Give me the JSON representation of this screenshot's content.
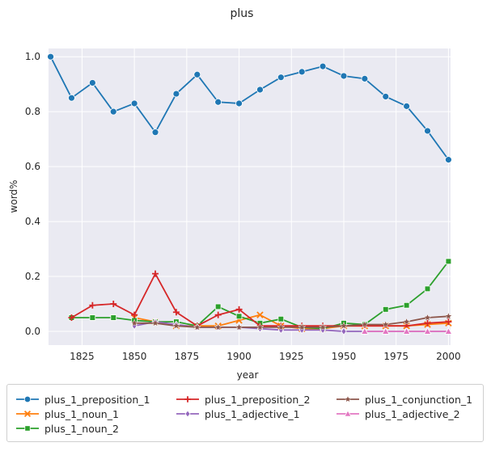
{
  "chart_data": {
    "type": "line",
    "title": "plus",
    "xlabel": "year",
    "ylabel": "word%",
    "xlim": [
      1809,
      2001
    ],
    "ylim": [
      -0.05,
      1.03
    ],
    "xticks": [
      1825,
      1850,
      1875,
      1900,
      1925,
      1950,
      1975,
      2000
    ],
    "yticks": [
      0.0,
      0.2,
      0.4,
      0.6,
      0.8,
      1.0
    ],
    "grid": true,
    "legend_position": "bottom",
    "series": [
      {
        "name": "plus_1_preposition_1",
        "color": "#1f77b4",
        "marker": "circle",
        "x": [
          1810,
          1820,
          1830,
          1840,
          1850,
          1860,
          1870,
          1880,
          1890,
          1900,
          1910,
          1920,
          1930,
          1940,
          1950,
          1960,
          1970,
          1980,
          1990,
          2000
        ],
        "values": [
          1.0,
          0.85,
          0.905,
          0.8,
          0.83,
          0.725,
          0.865,
          0.935,
          0.835,
          0.83,
          0.88,
          0.925,
          0.945,
          0.965,
          0.93,
          0.92,
          0.855,
          0.82,
          0.73,
          0.625
        ]
      },
      {
        "name": "plus_1_noun_1",
        "color": "#ff7f0e",
        "marker": "x",
        "x": [
          1850,
          1860,
          1870,
          1880,
          1890,
          1900,
          1910,
          1920,
          1930,
          1940,
          1950,
          1960,
          1970,
          1980,
          1990,
          2000
        ],
        "values": [
          0.05,
          0.035,
          0.02,
          0.02,
          0.02,
          0.04,
          0.06,
          0.02,
          0.01,
          0.01,
          0.02,
          0.02,
          0.02,
          0.02,
          0.025,
          0.03
        ]
      },
      {
        "name": "plus_1_noun_2",
        "color": "#2ca02c",
        "marker": "square",
        "x": [
          1820,
          1830,
          1840,
          1850,
          1860,
          1870,
          1880,
          1890,
          1900,
          1910,
          1920,
          1930,
          1940,
          1950,
          1960,
          1970,
          1980,
          1990,
          2000
        ],
        "values": [
          0.05,
          0.05,
          0.05,
          0.04,
          0.035,
          0.035,
          0.02,
          0.09,
          0.055,
          0.03,
          0.045,
          0.015,
          0.01,
          0.03,
          0.025,
          0.08,
          0.095,
          0.155,
          0.255
        ]
      },
      {
        "name": "plus_1_preposition_2",
        "color": "#d62728",
        "marker": "plus",
        "x": [
          1820,
          1830,
          1840,
          1850,
          1860,
          1870,
          1880,
          1890,
          1900,
          1910,
          1920,
          1930,
          1940,
          1950,
          1960,
          1970,
          1980,
          1990,
          2000
        ],
        "values": [
          0.05,
          0.095,
          0.1,
          0.06,
          0.21,
          0.07,
          0.02,
          0.06,
          0.08,
          0.02,
          0.02,
          0.02,
          0.02,
          0.02,
          0.02,
          0.02,
          0.02,
          0.03,
          0.035
        ]
      },
      {
        "name": "plus_1_adjective_1",
        "color": "#9467bd",
        "marker": "diamond",
        "x": [
          1850,
          1860,
          1870,
          1880,
          1890,
          1900,
          1910,
          1920,
          1930,
          1940,
          1950,
          1960,
          1970,
          1980,
          1990,
          2000
        ],
        "values": [
          0.02,
          0.035,
          0.025,
          0.015,
          0.015,
          0.015,
          0.01,
          0.005,
          0.005,
          0.005,
          0.0,
          0.0,
          0.0,
          0.0,
          0.0,
          0.0
        ]
      },
      {
        "name": "plus_1_conjunction_1",
        "color": "#8c564b",
        "marker": "star",
        "x": [
          1850,
          1860,
          1870,
          1880,
          1890,
          1900,
          1910,
          1920,
          1930,
          1940,
          1950,
          1960,
          1970,
          1980,
          1990,
          2000
        ],
        "values": [
          0.03,
          0.03,
          0.02,
          0.015,
          0.015,
          0.015,
          0.015,
          0.015,
          0.015,
          0.015,
          0.02,
          0.025,
          0.025,
          0.035,
          0.05,
          0.055
        ]
      },
      {
        "name": "plus_1_adjective_2",
        "color": "#e377c2",
        "marker": "triangle",
        "x": [
          1960,
          1970,
          1980,
          1990,
          2000
        ],
        "values": [
          0.0,
          0.0,
          0.0,
          0.0,
          0.0
        ]
      }
    ]
  }
}
